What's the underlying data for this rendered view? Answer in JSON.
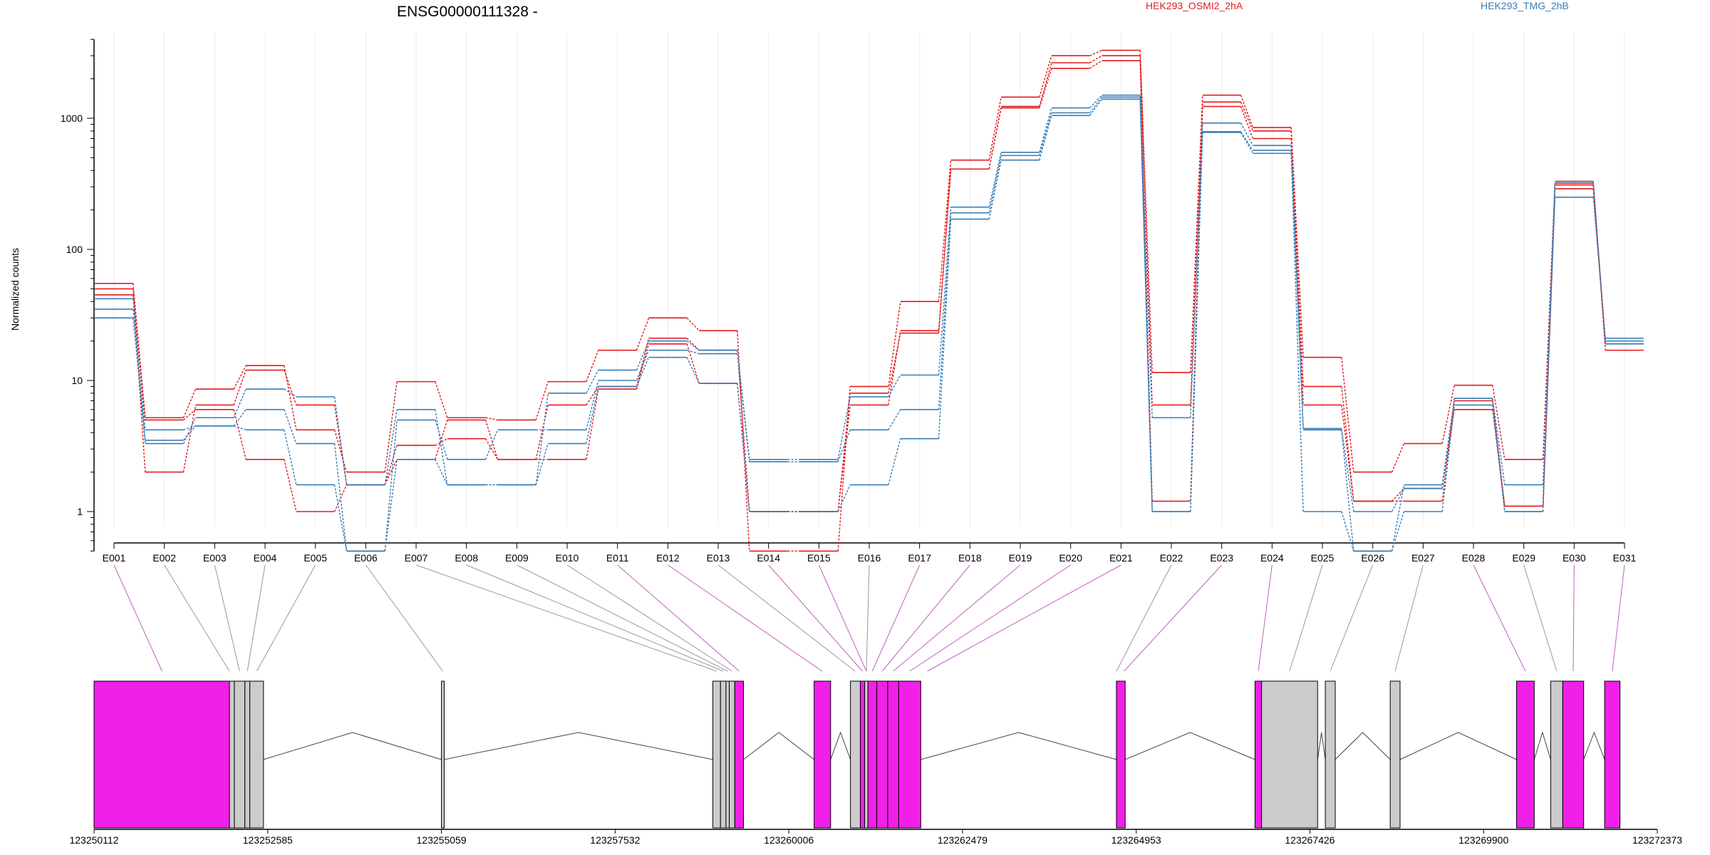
{
  "chart_data": {
    "type": "line",
    "title": "ENSG00000111328 -",
    "ylabel": "Normalized counts",
    "yscale": "log",
    "ylim": [
      0.5,
      4000
    ],
    "yticks": [
      1,
      10,
      100,
      1000
    ],
    "ytick_labels": [
      "1",
      "10",
      "100",
      "1000"
    ],
    "categories": [
      "E001",
      "E002",
      "E003",
      "E004",
      "E005",
      "E006",
      "E007",
      "E008",
      "E009",
      "E010",
      "E011",
      "E012",
      "E013",
      "E014",
      "E015",
      "E016",
      "E017",
      "E018",
      "E019",
      "E020",
      "E021",
      "E022",
      "E023",
      "E024",
      "E025",
      "E026",
      "E027",
      "E028",
      "E029",
      "E030",
      "E031"
    ],
    "legend": [
      {
        "label": "HEK293_OSMI2_2hA",
        "color": "#e41a1c"
      },
      {
        "label": "HEK293_TMG_2hB",
        "color": "#377eb8"
      }
    ],
    "series": [
      {
        "group": "HEK293_OSMI2_2hA",
        "color": "#e41a1c",
        "values": [
          55,
          5.2,
          8.6,
          13,
          4.2,
          2,
          9.8,
          5.2,
          5,
          9.8,
          17,
          30,
          24,
          0.5,
          0.5,
          9,
          40,
          480,
          1450,
          3000,
          3300,
          11.5,
          1500,
          850,
          15,
          2,
          3.3,
          9.2,
          2.5,
          330,
          17
        ]
      },
      {
        "group": "HEK293_OSMI2_2hA",
        "color": "#e41a1c",
        "values": [
          50,
          2,
          6.5,
          12,
          6.5,
          1.6,
          3.2,
          3.6,
          2.5,
          6.5,
          9,
          21,
          17,
          1,
          1,
          6.5,
          24,
          410,
          1230,
          2650,
          3000,
          6.5,
          1330,
          800,
          6.5,
          1.2,
          1.2,
          7,
          1.1,
          290,
          19
        ]
      },
      {
        "group": "HEK293_OSMI2_2hA",
        "color": "#e41a1c",
        "values": [
          45,
          5,
          6,
          2.5,
          1,
          1.6,
          2.5,
          5,
          2.5,
          2.5,
          8.6,
          19,
          9.5,
          1,
          1,
          8,
          23,
          410,
          1200,
          2400,
          2750,
          1.2,
          1230,
          700,
          9,
          1.2,
          1.5,
          6,
          1.1,
          310,
          19
        ]
      },
      {
        "group": "HEK293_TMG_2hB",
        "color": "#377eb8",
        "values": [
          42,
          3.3,
          5.2,
          8.6,
          7.5,
          1.6,
          6,
          1.6,
          1.6,
          8,
          12,
          20,
          17,
          2.5,
          2.5,
          7.5,
          11,
          210,
          550,
          1200,
          1500,
          5.2,
          920,
          620,
          4.2,
          0.5,
          1.6,
          7.3,
          1,
          250,
          21
        ]
      },
      {
        "group": "HEK293_TMG_2hB",
        "color": "#377eb8",
        "values": [
          35,
          4.2,
          4.5,
          6,
          3.3,
          0.5,
          5,
          2.5,
          4.2,
          4.2,
          10,
          17,
          16,
          2.4,
          2.4,
          4.2,
          6,
          190,
          520,
          1100,
          1450,
          1,
          790,
          570,
          4.3,
          1,
          1.5,
          7.3,
          1.6,
          320,
          19
        ]
      },
      {
        "group": "HEK293_TMG_2hB",
        "color": "#377eb8",
        "values": [
          30,
          3.5,
          4.5,
          4.2,
          1.6,
          0.5,
          2.5,
          1.6,
          1.6,
          3.3,
          9,
          15,
          9.5,
          1,
          1,
          1.6,
          3.6,
          170,
          480,
          1050,
          1400,
          1,
          780,
          540,
          1,
          0.5,
          1,
          6.5,
          1,
          320,
          20
        ]
      }
    ],
    "gene_model": {
      "coordinate_labels": [
        "123250112",
        "123252585",
        "123255059",
        "123257532",
        "123260006",
        "123262479",
        "123264953",
        "123267426",
        "123269900",
        "123272373"
      ],
      "range": [
        123250112,
        123272373
      ],
      "exons": [
        {
          "start": 123250112,
          "end": 123252040,
          "highlight": true
        },
        {
          "start": 123252040,
          "end": 123252110,
          "highlight": false
        },
        {
          "start": 123252110,
          "end": 123252260,
          "highlight": false
        },
        {
          "start": 123252260,
          "end": 123252330,
          "highlight": false
        },
        {
          "start": 123252330,
          "end": 123252525,
          "highlight": false
        },
        {
          "start": 123255059,
          "end": 123255098,
          "highlight": false
        },
        {
          "start": 123258924,
          "end": 123259033,
          "highlight": false
        },
        {
          "start": 123259033,
          "end": 123259111,
          "highlight": false
        },
        {
          "start": 123259111,
          "end": 123259158,
          "highlight": false
        },
        {
          "start": 123259158,
          "end": 123259236,
          "highlight": false
        },
        {
          "start": 123259236,
          "end": 123259361,
          "highlight": true
        },
        {
          "start": 123260366,
          "end": 123260601,
          "highlight": true
        },
        {
          "start": 123260883,
          "end": 123261024,
          "highlight": false
        },
        {
          "start": 123261024,
          "end": 123261086,
          "highlight": true
        },
        {
          "start": 123261086,
          "end": 123261133,
          "highlight": false
        },
        {
          "start": 123261133,
          "end": 123261258,
          "highlight": true
        },
        {
          "start": 123261258,
          "end": 123261414,
          "highlight": true
        },
        {
          "start": 123261414,
          "end": 123261571,
          "highlight": true
        },
        {
          "start": 123261571,
          "end": 123261885,
          "highlight": true
        },
        {
          "start": 123264671,
          "end": 123264796,
          "highlight": true
        },
        {
          "start": 123266644,
          "end": 123266738,
          "highlight": true
        },
        {
          "start": 123266738,
          "end": 123267536,
          "highlight": false
        },
        {
          "start": 123267646,
          "end": 123267787,
          "highlight": false
        },
        {
          "start": 123268570,
          "end": 123268710,
          "highlight": false
        },
        {
          "start": 123270369,
          "end": 123270621,
          "highlight": true
        },
        {
          "start": 123270855,
          "end": 123271027,
          "highlight": false
        },
        {
          "start": 123271027,
          "end": 123271325,
          "highlight": true
        },
        {
          "start": 123271623,
          "end": 123271842,
          "highlight": true
        }
      ],
      "connectors": [
        {
          "exon": "E001",
          "x": 123251080,
          "highlight": true
        },
        {
          "exon": "E002",
          "x": 123252040,
          "highlight": false
        },
        {
          "exon": "E003",
          "x": 123252185,
          "highlight": false
        },
        {
          "exon": "E004",
          "x": 123252295,
          "highlight": false
        },
        {
          "exon": "E005",
          "x": 123252430,
          "highlight": false
        },
        {
          "exon": "E006",
          "x": 123255078,
          "highlight": false
        },
        {
          "exon": "E007",
          "x": 123258978,
          "highlight": false
        },
        {
          "exon": "E008",
          "x": 123259072,
          "highlight": false
        },
        {
          "exon": "E009",
          "x": 123259134,
          "highlight": false
        },
        {
          "exon": "E010",
          "x": 123259197,
          "highlight": false
        },
        {
          "exon": "E011",
          "x": 123259299,
          "highlight": true
        },
        {
          "exon": "E012",
          "x": 123260480,
          "highlight": true
        },
        {
          "exon": "E013",
          "x": 123260950,
          "highlight": false
        },
        {
          "exon": "E014",
          "x": 123261055,
          "highlight": true
        },
        {
          "exon": "E015",
          "x": 123261110,
          "highlight": true
        },
        {
          "exon": "E016",
          "x": 123261110,
          "highlight": false
        },
        {
          "exon": "E017",
          "x": 123261195,
          "highlight": true
        },
        {
          "exon": "E018",
          "x": 123261336,
          "highlight": true
        },
        {
          "exon": "E019",
          "x": 123261493,
          "highlight": true
        },
        {
          "exon": "E020",
          "x": 123261728,
          "highlight": true
        },
        {
          "exon": "E021",
          "x": 123261978,
          "highlight": true
        },
        {
          "exon": "E022",
          "x": 123264671,
          "highlight": false
        },
        {
          "exon": "E023",
          "x": 123264780,
          "highlight": true
        },
        {
          "exon": "E024",
          "x": 123266691,
          "highlight": true
        },
        {
          "exon": "E025",
          "x": 123267137,
          "highlight": false
        },
        {
          "exon": "E026",
          "x": 123267716,
          "highlight": false
        },
        {
          "exon": "E027",
          "x": 123268640,
          "highlight": false
        },
        {
          "exon": "E028",
          "x": 123270495,
          "highlight": true
        },
        {
          "exon": "E029",
          "x": 123270941,
          "highlight": false
        },
        {
          "exon": "E030",
          "x": 123271176,
          "highlight": true
        },
        {
          "exon": "E031",
          "x": 123271733,
          "highlight": true
        }
      ]
    }
  }
}
